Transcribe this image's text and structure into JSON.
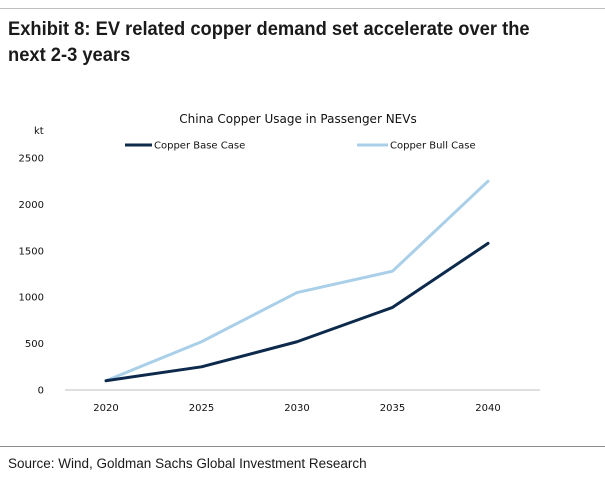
{
  "header": {
    "title": "Exhibit 8: EV related copper demand set accelerate over the next 2-3 years"
  },
  "footer": {
    "source": "Source: Wind, Goldman Sachs Global Investment Research"
  },
  "chart_data": {
    "type": "line",
    "title": "China Copper Usage in Passenger NEVs",
    "ylabel": "kt",
    "xlabel": "",
    "categories": [
      "2020",
      "2025",
      "2030",
      "2035",
      "2040"
    ],
    "ylim": [
      0,
      2500
    ],
    "yticks": [
      0,
      500,
      1000,
      1500,
      2000,
      2500
    ],
    "grid": false,
    "legend_position": "top",
    "series": [
      {
        "name": "Copper Base Case",
        "color": "#0d2a4c",
        "values": [
          100,
          250,
          520,
          890,
          1580
        ]
      },
      {
        "name": "Copper Bull Case",
        "color": "#a9cfe9",
        "values": [
          100,
          520,
          1050,
          1280,
          2250
        ]
      }
    ]
  }
}
